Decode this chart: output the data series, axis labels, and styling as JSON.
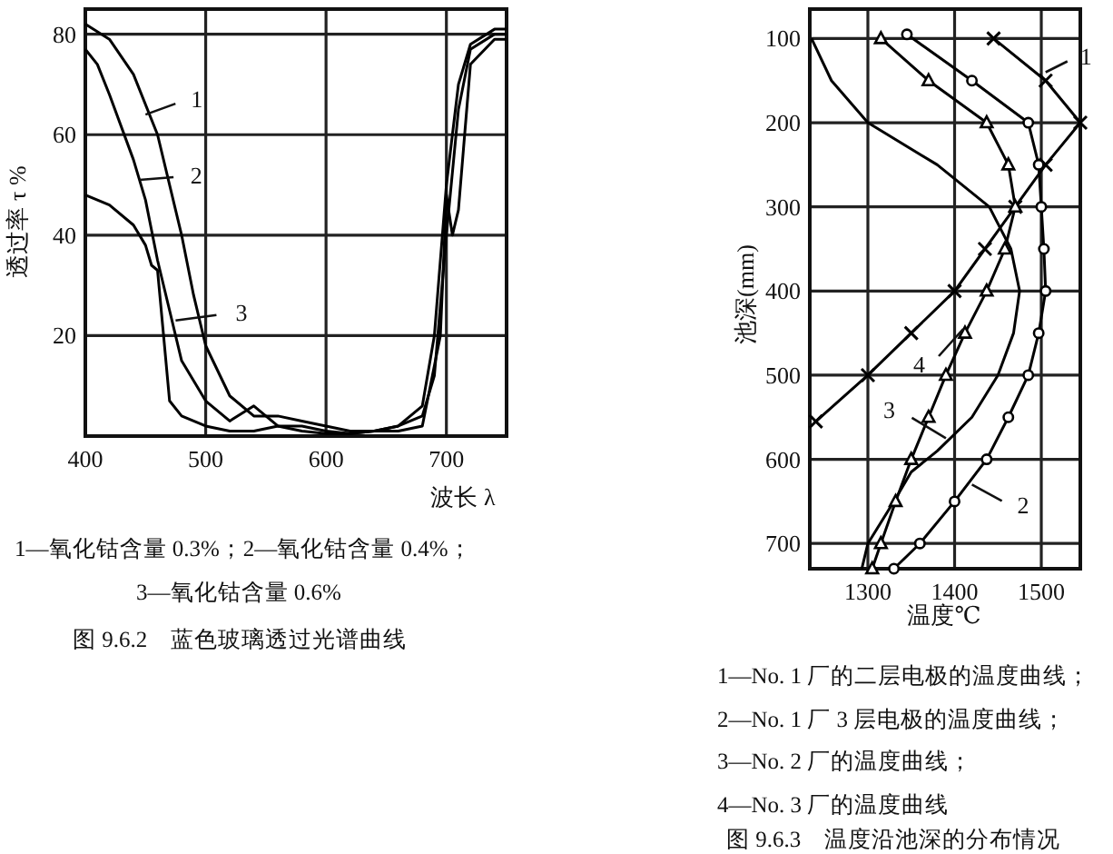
{
  "chart_data": [
    {
      "type": "line",
      "xlabel": "波长 λ",
      "ylabel": "透过率 τ %",
      "title": "图 9.6.2　蓝色玻璃透过光谱曲线",
      "xlim": [
        400,
        750
      ],
      "ylim": [
        0,
        85
      ],
      "xticks": [
        400,
        500,
        600,
        700
      ],
      "yticks": [
        20,
        40,
        60,
        80
      ],
      "grid": true,
      "series": [
        {
          "color": "#000000",
          "x": [
            400,
            420,
            440,
            460,
            480,
            490,
            500,
            520,
            540,
            560,
            580,
            600,
            620,
            640,
            660,
            680,
            690,
            700,
            710,
            720,
            740,
            750
          ],
          "values": [
            82,
            79,
            72,
            60,
            40,
            28,
            18,
            8,
            4,
            4,
            3,
            2,
            1,
            1,
            2,
            6,
            20,
            50,
            70,
            78,
            81,
            81
          ]
        },
        {
          "color": "#000000",
          "x": [
            400,
            410,
            420,
            440,
            450,
            460,
            470,
            480,
            500,
            520,
            540,
            560,
            580,
            600,
            620,
            640,
            660,
            680,
            690,
            700,
            710,
            720,
            740,
            750
          ],
          "values": [
            77,
            74,
            68,
            55,
            47,
            35,
            25,
            15,
            7,
            3,
            6,
            2,
            2,
            1,
            0.5,
            1,
            2,
            4,
            12,
            40,
            65,
            77,
            80,
            80
          ]
        },
        {
          "color": "#000000",
          "x": [
            400,
            420,
            440,
            450,
            455,
            460,
            465,
            470,
            480,
            500,
            520,
            540,
            560,
            580,
            600,
            620,
            640,
            660,
            680,
            695,
            700,
            705,
            710,
            720,
            740,
            750
          ],
          "values": [
            48,
            46,
            42,
            38,
            34,
            33,
            20,
            7,
            4,
            2,
            1,
            1,
            2,
            1,
            0.5,
            0.5,
            1,
            1,
            2,
            20,
            48,
            40,
            45,
            74,
            79,
            79
          ]
        }
      ],
      "annotations": [
        {
          "text": "1",
          "x": 450,
          "y": 64
        },
        {
          "text": "2",
          "x": 445,
          "y": 51
        },
        {
          "text": "3",
          "x": 475,
          "y": 23
        },
        "1—氧化钴含量 0.3%；2—氧化钴含量 0.4%；",
        "3—氧化钴含量 0.6%"
      ]
    },
    {
      "type": "line",
      "xlabel": "温度℃",
      "ylabel": "池深(mm)",
      "title": "图 9.6.3　温度沿池深的分布情况",
      "xlim": [
        1233,
        1545
      ],
      "ylim": [
        730,
        65
      ],
      "xticks": [
        1300,
        1400,
        1500
      ],
      "yticks": [
        100,
        200,
        300,
        400,
        500,
        600,
        700
      ],
      "grid": true,
      "series": [
        {
          "color": "#000000",
          "marker": "cross",
          "x": [
            1445,
            1505,
            1545,
            1505,
            1470,
            1435,
            1400,
            1350,
            1300,
            1240
          ],
          "values": [
            100,
            150,
            200,
            250,
            300,
            350,
            400,
            450,
            500,
            555
          ]
        },
        {
          "color": "#000000",
          "marker": "circle",
          "x": [
            1345,
            1420,
            1485,
            1497,
            1500,
            1503,
            1505,
            1497,
            1485,
            1462,
            1437,
            1400,
            1360,
            1330
          ],
          "values": [
            95,
            150,
            200,
            250,
            300,
            350,
            400,
            450,
            500,
            550,
            600,
            650,
            700,
            730
          ]
        },
        {
          "color": "#000000",
          "marker": "none",
          "x": [
            1235,
            1258,
            1300,
            1380,
            1440,
            1465,
            1475,
            1468,
            1450,
            1420,
            1380,
            1350,
            1330,
            1300,
            1293
          ],
          "values": [
            100,
            150,
            200,
            250,
            300,
            350,
            400,
            450,
            500,
            550,
            590,
            615,
            650,
            700,
            730
          ]
        },
        {
          "color": "#000000",
          "marker": "triangle",
          "x": [
            1315,
            1370,
            1437,
            1462,
            1470,
            1458,
            1437,
            1412,
            1390,
            1370,
            1350,
            1332,
            1315,
            1305
          ],
          "values": [
            100,
            150,
            200,
            250,
            300,
            350,
            400,
            450,
            500,
            550,
            600,
            650,
            700,
            730
          ]
        }
      ],
      "annotations": [
        {
          "text": "1",
          "x": 1505,
          "y": 140
        },
        {
          "text": "2",
          "x": 1420,
          "y": 630
        },
        {
          "text": "3",
          "x": 1390,
          "y": 575
        },
        {
          "text": "4",
          "x": 1410,
          "y": 445
        },
        "1—No. 1 厂的二层电极的温度曲线；",
        "2—No. 1 厂 3 层电极的温度曲线；",
        "3—No. 2 厂的温度曲线；",
        "4—No. 3 厂的温度曲线"
      ]
    }
  ]
}
